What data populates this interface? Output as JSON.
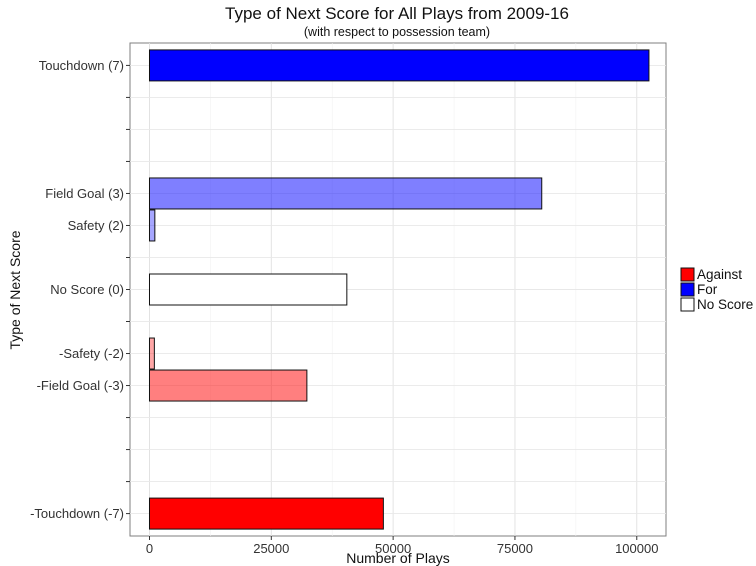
{
  "chart_data": {
    "type": "bar",
    "orientation": "horizontal",
    "title": "Type of Next Score for All Plays from 2009-16",
    "subtitle": "(with respect to possession team)",
    "xlabel": "Number of Plays",
    "ylabel": "Type of Next Score",
    "xlim": [
      -4000,
      106000
    ],
    "ylim": [
      -7.7,
      7.7
    ],
    "x_ticks": [
      0,
      25000,
      50000,
      75000,
      100000
    ],
    "x_tick_labels": [
      "0",
      "25000",
      "50000",
      "75000",
      "100000"
    ],
    "y_minor_ticks": [
      -6,
      -5,
      -4,
      -1,
      1,
      4,
      5,
      6
    ],
    "grid": true,
    "legend_position": "right",
    "legend": [
      {
        "label": "Against",
        "color": "#ff0000"
      },
      {
        "label": "For",
        "color": "#0000ff"
      },
      {
        "label": "No Score",
        "color": "#ffffff"
      }
    ],
    "bars": [
      {
        "category": "Touchdown (7)",
        "y": 7,
        "value": 102500,
        "group": "For",
        "color": "#0000ff",
        "opacity": 1.0
      },
      {
        "category": "Field Goal (3)",
        "y": 3,
        "value": 80500,
        "group": "For",
        "color": "#0000ff",
        "opacity": 0.5
      },
      {
        "category": "Safety (2)",
        "y": 2,
        "value": 1100,
        "group": "For",
        "color": "#0000ff",
        "opacity": 0.35
      },
      {
        "category": "No Score (0)",
        "y": 0,
        "value": 40500,
        "group": "No Score",
        "color": "#ffffff",
        "opacity": 1.0
      },
      {
        "category": "-Safety (-2)",
        "y": -2,
        "value": 1000,
        "group": "Against",
        "color": "#ff0000",
        "opacity": 0.35
      },
      {
        "category": "-Field Goal (-3)",
        "y": -3,
        "value": 32300,
        "group": "Against",
        "color": "#ff0000",
        "opacity": 0.5
      },
      {
        "category": "-Touchdown (-7)",
        "y": -7,
        "value": 48000,
        "group": "Against",
        "color": "#ff0000",
        "opacity": 1.0
      }
    ]
  }
}
